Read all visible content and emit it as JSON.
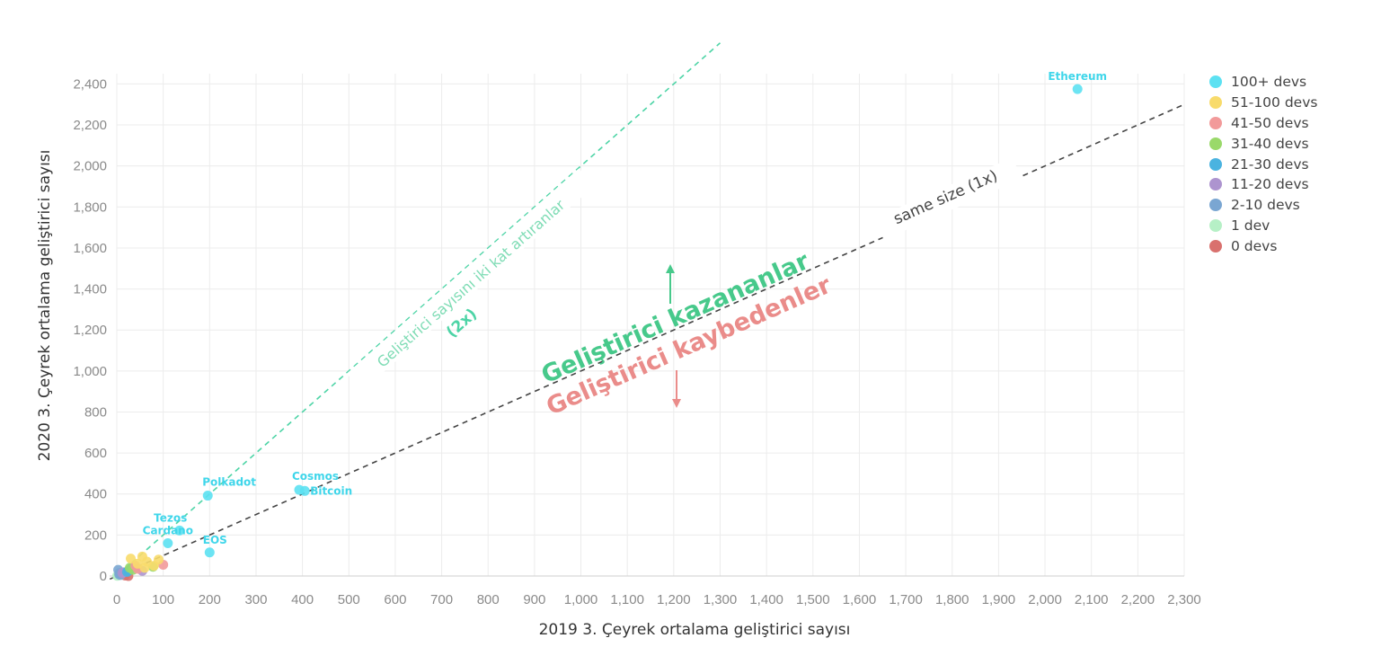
{
  "chart_data": {
    "type": "scatter",
    "xlabel": "2019 3. Çeyrek ortalama geliştirici sayısı",
    "ylabel": "2020 3. Çeyrek ortalama geliştirici sayısı",
    "xlim": [
      0,
      2300
    ],
    "ylim": [
      0,
      2450
    ],
    "x_ticks": [
      0,
      100,
      200,
      300,
      400,
      500,
      600,
      700,
      800,
      900,
      1000,
      1100,
      1200,
      1300,
      1400,
      1500,
      1600,
      1700,
      1800,
      1900,
      2000,
      2100,
      2200,
      2300
    ],
    "y_ticks": [
      0,
      200,
      400,
      600,
      800,
      1000,
      1200,
      1400,
      1600,
      1800,
      2000,
      2200,
      2400
    ],
    "grid": true,
    "legend_position": "right",
    "series": [
      {
        "name": "100+ devs",
        "color": "#5ce1f2",
        "points": [
          {
            "x": 2070,
            "y": 2375,
            "label": "Ethereum"
          },
          {
            "x": 393,
            "y": 420,
            "label": "Cosmos"
          },
          {
            "x": 405,
            "y": 415,
            "label": "Bitcoin"
          },
          {
            "x": 196,
            "y": 392,
            "label": "Polkadot"
          },
          {
            "x": 110,
            "y": 160,
            "label": "Cardano"
          },
          {
            "x": 135,
            "y": 222,
            "label": "Tezos"
          },
          {
            "x": 200,
            "y": 115,
            "label": "EOS"
          }
        ]
      },
      {
        "name": "51-100 devs",
        "color": "#f8db6b",
        "points": [
          {
            "x": 55,
            "y": 95
          },
          {
            "x": 65,
            "y": 70
          },
          {
            "x": 45,
            "y": 60
          },
          {
            "x": 80,
            "y": 50
          },
          {
            "x": 90,
            "y": 80
          },
          {
            "x": 30,
            "y": 85
          },
          {
            "x": 60,
            "y": 40
          }
        ]
      },
      {
        "name": "41-50 devs",
        "color": "#f29a9a",
        "points": [
          {
            "x": 100,
            "y": 55
          },
          {
            "x": 45,
            "y": 35
          },
          {
            "x": 40,
            "y": 50
          }
        ]
      },
      {
        "name": "31-40 devs",
        "color": "#9ad96a",
        "points": [
          {
            "x": 78,
            "y": 45
          },
          {
            "x": 35,
            "y": 30
          },
          {
            "x": 28,
            "y": 40
          }
        ]
      },
      {
        "name": "21-30 devs",
        "color": "#4ab3e0",
        "points": [
          {
            "x": 25,
            "y": 25
          },
          {
            "x": 30,
            "y": 35
          },
          {
            "x": 22,
            "y": 20
          }
        ]
      },
      {
        "name": "11-20 devs",
        "color": "#ad94cf",
        "points": [
          {
            "x": 15,
            "y": 18
          },
          {
            "x": 55,
            "y": 25
          },
          {
            "x": 12,
            "y": 14
          }
        ]
      },
      {
        "name": "2-10 devs",
        "color": "#7aa6d2",
        "points": [
          {
            "x": 5,
            "y": 8
          },
          {
            "x": 8,
            "y": 5
          },
          {
            "x": 3,
            "y": 30
          },
          {
            "x": 6,
            "y": 15
          }
        ]
      },
      {
        "name": "1 dev",
        "color": "#b6f0c6",
        "points": [
          {
            "x": 1,
            "y": 1
          },
          {
            "x": 2,
            "y": 3
          }
        ]
      },
      {
        "name": "0 devs",
        "color": "#d9716e",
        "points": [
          {
            "x": 25,
            "y": 0
          },
          {
            "x": 18,
            "y": 2
          }
        ]
      }
    ],
    "reference_lines": [
      {
        "label": "same size (1x)",
        "slope": 1,
        "color": "#444444"
      },
      {
        "label": "Geliştirici sayısını iki kat artıranlar",
        "sublabel": "(2x)",
        "slope": 2,
        "color": "#4dd4a6"
      }
    ],
    "annotations": [
      {
        "text": "Geliştirici kazananlar",
        "color": "#47c98b",
        "arrow": "up"
      },
      {
        "text": "Geliştirici kaybedenler",
        "color": "#ea8c8a",
        "arrow": "down"
      }
    ]
  }
}
